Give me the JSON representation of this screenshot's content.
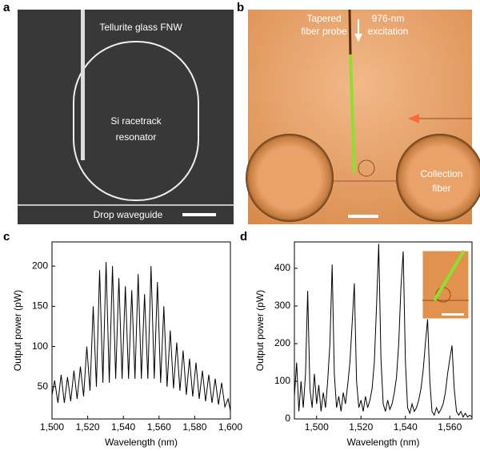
{
  "panels": [
    {
      "label": "a",
      "texts": [
        "Tellurite glass FNW",
        [
          "Si racetrack",
          "resonator"
        ],
        "Drop waveguide"
      ]
    },
    {
      "label": "b",
      "texts": [
        [
          "Tapered",
          "fiber probe"
        ],
        [
          "976-nm",
          "excitation"
        ],
        [
          "Collection",
          "fiber"
        ]
      ]
    }
  ],
  "chart_data": [
    {
      "type": "line",
      "label": "c",
      "xlabel": "Wavelength (nm)",
      "ylabel": "Output power (pW)",
      "color": "#000000",
      "xlim": [
        1500,
        1600
      ],
      "ylim": [
        10,
        230
      ],
      "xticks": [
        {
          "value": 1500,
          "label": "1,500"
        },
        {
          "value": 1520,
          "label": "1,520"
        },
        {
          "value": 1540,
          "label": "1,540"
        },
        {
          "value": 1560,
          "label": "1,560"
        },
        {
          "value": 1580,
          "label": "1,580"
        },
        {
          "value": 1600,
          "label": "1,600"
        }
      ],
      "yticks": [
        50,
        100,
        150,
        200
      ],
      "x": [
        1500,
        1501.5,
        1503.3,
        1505.1,
        1506.9,
        1508.7,
        1510.5,
        1512.3,
        1514.1,
        1515.9,
        1517.7,
        1519.5,
        1521.3,
        1523.1,
        1524.9,
        1526.7,
        1528.5,
        1530.3,
        1532.1,
        1533.9,
        1535.7,
        1537.5,
        1539.3,
        1541.1,
        1542.9,
        1544.7,
        1546.5,
        1548.3,
        1550.1,
        1551.9,
        1553.7,
        1555.5,
        1557.3,
        1559.1,
        1560.9,
        1562.7,
        1564.5,
        1566.3,
        1568.1,
        1569.9,
        1571.7,
        1573.5,
        1575.3,
        1577.1,
        1578.9,
        1580.7,
        1582.5,
        1584.3,
        1586.1,
        1587.9,
        1589.7,
        1591.5,
        1593.3,
        1595.1,
        1596.9,
        1598.7,
        1600
      ],
      "values": [
        40,
        58,
        30,
        65,
        30,
        62,
        32,
        70,
        35,
        75,
        38,
        100,
        45,
        150,
        50,
        195,
        55,
        205,
        55,
        200,
        60,
        185,
        60,
        175,
        60,
        170,
        60,
        190,
        60,
        165,
        60,
        200,
        60,
        180,
        55,
        150,
        50,
        120,
        48,
        105,
        45,
        95,
        40,
        85,
        38,
        80,
        35,
        70,
        32,
        65,
        30,
        60,
        28,
        55,
        25,
        35,
        20
      ]
    },
    {
      "type": "line",
      "label": "d",
      "xlabel": "Wavelength (nm)",
      "ylabel": "Output power (pW)",
      "color": "#000000",
      "xlim": [
        1490,
        1570
      ],
      "ylim": [
        0,
        470
      ],
      "xticks": [
        {
          "value": 1500,
          "label": "1,500"
        },
        {
          "value": 1520,
          "label": "1,520"
        },
        {
          "value": 1540,
          "label": "1,540"
        },
        {
          "value": 1560,
          "label": "1,560"
        }
      ],
      "yticks": [
        0,
        100,
        200,
        300,
        400
      ],
      "x": [
        1490,
        1491,
        1492,
        1493,
        1494,
        1495,
        1496,
        1497,
        1498,
        1499,
        1500,
        1501,
        1502,
        1503,
        1504,
        1505,
        1506,
        1507,
        1508,
        1509,
        1510,
        1511,
        1512,
        1513,
        1514,
        1515,
        1516,
        1517,
        1518,
        1519,
        1520,
        1521,
        1522,
        1523,
        1524,
        1525,
        1526,
        1527,
        1528,
        1529,
        1530,
        1531,
        1532,
        1533,
        1534,
        1535,
        1536,
        1537,
        1538,
        1539,
        1540,
        1541,
        1542,
        1543,
        1544,
        1545,
        1546,
        1547,
        1548,
        1549,
        1550,
        1551,
        1552,
        1553,
        1554,
        1555,
        1556,
        1557,
        1558,
        1559,
        1560,
        1561,
        1562,
        1563,
        1564,
        1565,
        1566,
        1567,
        1568,
        1569,
        1570
      ],
      "values": [
        60,
        150,
        20,
        100,
        30,
        120,
        340,
        80,
        30,
        120,
        40,
        90,
        20,
        70,
        30,
        100,
        200,
        410,
        120,
        30,
        60,
        20,
        70,
        40,
        90,
        150,
        250,
        360,
        100,
        30,
        50,
        20,
        60,
        30,
        50,
        80,
        150,
        300,
        465,
        160,
        40,
        20,
        50,
        25,
        40,
        70,
        110,
        200,
        350,
        445,
        150,
        30,
        15,
        40,
        20,
        30,
        50,
        80,
        130,
        200,
        265,
        100,
        20,
        10,
        30,
        15,
        25,
        40,
        70,
        120,
        160,
        195,
        80,
        20,
        10,
        20,
        5,
        15,
        5,
        10,
        5
      ]
    }
  ]
}
